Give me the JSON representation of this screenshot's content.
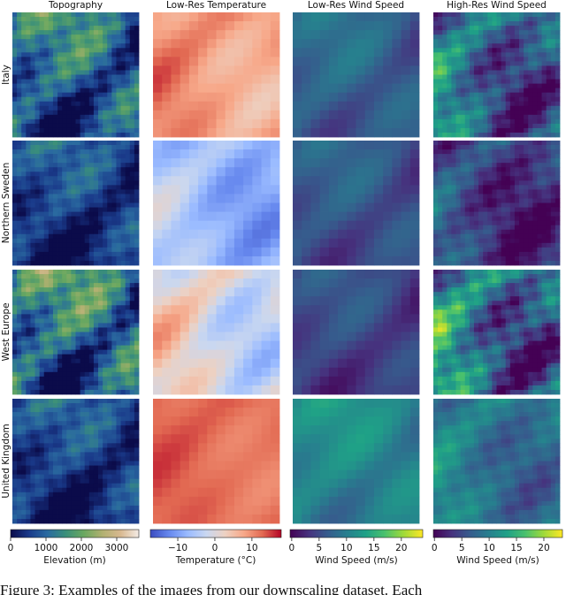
{
  "columns": [
    "Topography",
    "Low-Res Temperature",
    "Low-Res Wind Speed",
    "High-Res Wind Speed"
  ],
  "rows": [
    "Italy",
    "Northern Sweden",
    "West Europe",
    "United Kingdom"
  ],
  "colorbars": [
    {
      "label": "Elevation (m)",
      "lim": [
        0,
        3625
      ],
      "ticks": [
        0,
        1000,
        2000,
        3000
      ]
    },
    {
      "label": "Temperature (°C)",
      "lim": [
        -17.4,
        17.9
      ],
      "ticks": [
        {
          "value": -10,
          "label": "−10"
        },
        0,
        10
      ]
    },
    {
      "label": "Wind Speed (m/s)",
      "lim": [
        -0.3,
        23.9
      ],
      "ticks": [
        0,
        5,
        10,
        15,
        20
      ]
    },
    {
      "label": "Wind Speed (m/s)",
      "lim": [
        -0.2,
        23.4
      ],
      "ticks": [
        0,
        5,
        10,
        15,
        20
      ]
    }
  ],
  "caption": "Figure 3: Examples of the images from our downscaling dataset. Each"
}
